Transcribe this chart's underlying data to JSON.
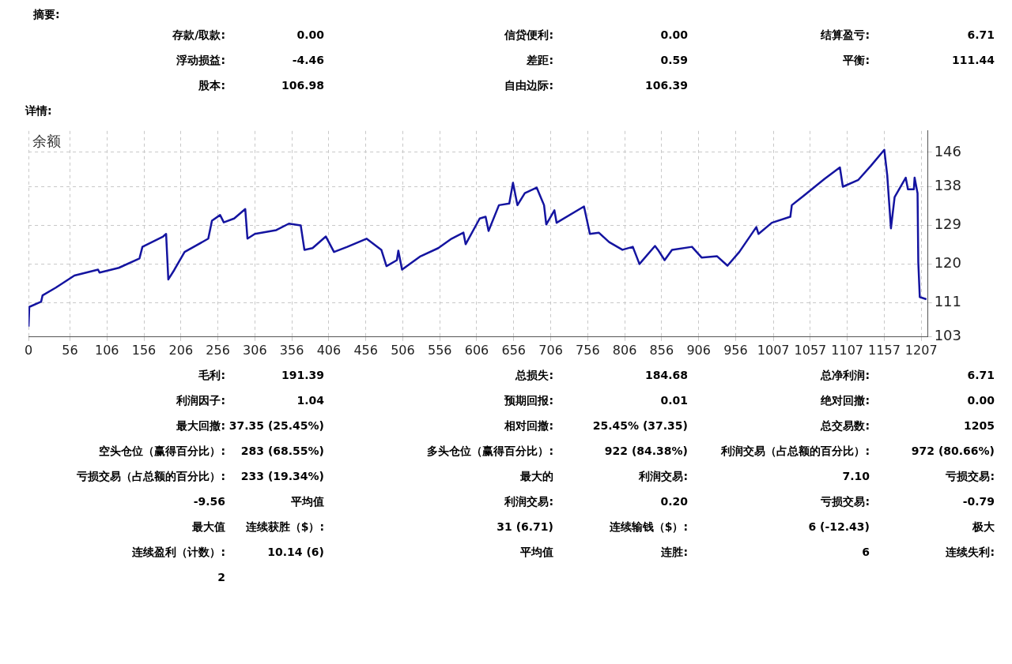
{
  "chart_data": [
    {
      "type": "other",
      "title": "摘要:",
      "annotations": [
        "存款/取款:",
        "0.00",
        "信贷便利:",
        "0.00",
        "结算盈亏:",
        "6.71",
        "浮动损益:",
        "-4.46",
        "差距:",
        "0.59",
        "平衡:",
        "111.44",
        "股本:",
        "106.98",
        "自由边际:",
        "106.39"
      ]
    },
    {
      "type": "line",
      "title": "详情:",
      "subtitle": "余额",
      "grid": true,
      "xlim": [
        0,
        1216
      ],
      "xticks": [
        0,
        56,
        106,
        156,
        206,
        256,
        306,
        356,
        406,
        456,
        506,
        556,
        606,
        656,
        706,
        756,
        806,
        856,
        906,
        956,
        1007,
        1057,
        1107,
        1157,
        1207
      ],
      "ylim": [
        103,
        151
      ],
      "yticks": [
        103,
        111,
        120,
        129,
        138,
        146
      ],
      "series": [
        {
          "color": "#1414a0",
          "x": [
            0,
            1,
            17,
            19,
            37,
            62,
            94,
            96,
            122,
            150,
            154,
            182,
            186,
            189,
            197,
            211,
            243,
            248,
            259,
            264,
            278,
            293,
            296,
            306,
            335,
            352,
            368,
            373,
            384,
            402,
            413,
            431,
            457,
            477,
            484,
            498,
            500,
            505,
            530,
            554,
            572,
            588,
            591,
            610,
            618,
            622,
            636,
            650,
            655,
            661,
            671,
            687,
            697,
            700,
            711,
            714,
            751,
            759,
            771,
            785,
            803,
            817,
            826,
            847,
            851,
            860,
            870,
            897,
            910,
            931,
            945,
            961,
            984,
            987,
            1005,
            1030,
            1032,
            1048,
            1076,
            1097,
            1101,
            1122,
            1139,
            1157,
            1161,
            1166,
            1171,
            1186,
            1189,
            1197,
            1198,
            1202,
            1203,
            1205,
            1214
          ],
          "values": [
            105.4,
            110.0,
            111.2,
            112.7,
            114.5,
            117.3,
            118.7,
            118.0,
            119.1,
            121.3,
            124.0,
            126.4,
            127.0,
            116.4,
            118.6,
            122.8,
            125.9,
            130.1,
            131.4,
            129.7,
            130.6,
            132.8,
            125.9,
            127.0,
            127.9,
            129.4,
            129.0,
            123.3,
            123.7,
            126.4,
            122.8,
            124.0,
            125.9,
            123.3,
            119.5,
            120.9,
            123.1,
            118.7,
            121.8,
            123.7,
            125.9,
            127.3,
            124.6,
            130.6,
            131.0,
            127.7,
            133.7,
            134.1,
            138.9,
            133.7,
            136.5,
            137.8,
            133.7,
            129.2,
            132.5,
            129.6,
            133.4,
            127.0,
            127.3,
            125.1,
            123.3,
            124.0,
            120.0,
            124.2,
            123.3,
            120.9,
            123.3,
            124.0,
            121.5,
            121.8,
            119.6,
            122.8,
            128.6,
            127.0,
            129.6,
            131.0,
            133.7,
            135.9,
            139.8,
            142.5,
            138.0,
            139.6,
            142.9,
            146.6,
            140.7,
            128.3,
            135.6,
            140.1,
            137.4,
            137.4,
            140.1,
            136.5,
            120.4,
            112.3,
            111.8
          ]
        }
      ]
    },
    {
      "type": "other",
      "annotations": [
        "毛利:",
        "191.39",
        "总损失:",
        "184.68",
        "总净利润:",
        "6.71",
        "利润因子:",
        "1.04",
        "预期回报:",
        "0.01",
        "绝对回撤:",
        "0.00",
        "最大回撤:",
        "37.35 (25.45%)",
        "相对回撤:",
        "25.45% (37.35)",
        "总交易数:",
        "1205",
        "空头仓位（赢得百分比）:",
        "283 (68.55%)",
        "多头仓位（赢得百分比）:",
        "922 (84.38%)",
        "利润交易（占总额的百分比）:",
        "972 (80.66%)",
        "亏损交易（占总额的百分比）:",
        "233 (19.34%)",
        "最大的",
        "利润交易:",
        "7.10",
        "亏损交易:",
        "-9.56",
        "平均值",
        "利润交易:",
        "0.20",
        "亏损交易:",
        "-0.79",
        "最大值",
        "连续获胜（$）:",
        "31 (6.71)",
        "连续输钱（$）:",
        "6 (-12.43)",
        "极大",
        "连续盈利（计数）:",
        "10.14 (6)",
        "平均值",
        "连胜:",
        "6",
        "连续失利:",
        "2"
      ]
    }
  ]
}
